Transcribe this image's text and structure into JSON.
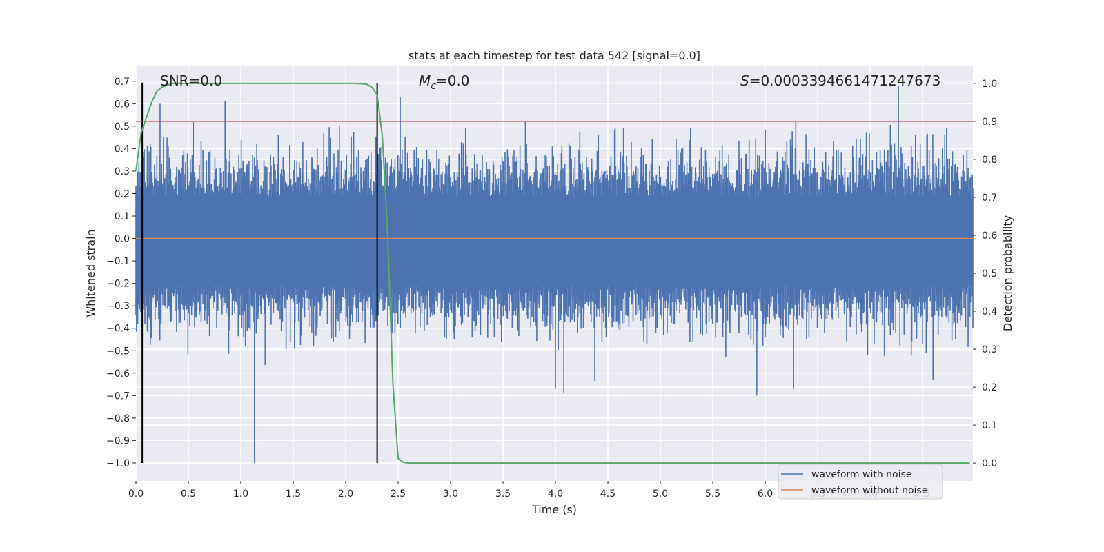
{
  "chart_data": {
    "type": "line",
    "title": "stats at each timestep for test data 542 [signal=0.0]",
    "xlabel": "Time (s)",
    "ylabel": "Whitened strain",
    "ylabel_right": "Detection probability",
    "xlim": [
      0.0,
      7.98
    ],
    "ylim": [
      -1.08,
      0.77
    ],
    "ylim_right": [
      -0.047,
      1.047
    ],
    "x_ticks": [
      0.0,
      0.5,
      1.0,
      1.5,
      2.0,
      2.5,
      3.0,
      3.5,
      4.0,
      4.5,
      5.0,
      5.5,
      6.0,
      6.5,
      7.0,
      7.5
    ],
    "x_tick_labels": [
      "0.0",
      "0.5",
      "1.0",
      "1.5",
      "2.0",
      "2.5",
      "3.0",
      "3.5",
      "4.0",
      "4.5",
      "5.0",
      "5.5",
      "6.0",
      "6.5",
      "7.0",
      "7.5"
    ],
    "y_ticks": [
      0.7,
      0.6,
      0.5,
      0.4,
      0.3,
      0.2,
      0.1,
      0.0,
      -0.1,
      -0.2,
      -0.3,
      -0.4,
      -0.5,
      -0.6,
      -0.7,
      -0.8,
      -0.9,
      -1.0
    ],
    "y_tick_labels": [
      "0.7",
      "0.6",
      "0.5",
      "0.4",
      "0.3",
      "0.2",
      "0.1",
      "0.0",
      "−0.1",
      "−0.2",
      "−0.3",
      "−0.4",
      "−0.5",
      "−0.6",
      "−0.7",
      "−0.8",
      "−0.9",
      "−1.0"
    ],
    "y_right_ticks": [
      1.0,
      0.9,
      0.8,
      0.7,
      0.6,
      0.5,
      0.4,
      0.3,
      0.2,
      0.1,
      0.0
    ],
    "y_right_tick_labels": [
      "1.0",
      "0.9",
      "0.8",
      "0.7",
      "0.6",
      "0.5",
      "0.4",
      "0.3",
      "0.2",
      "0.1",
      "0.0"
    ],
    "grid": true,
    "annotations": {
      "snr": "SNR=0.0",
      "mc_symbol": "M",
      "mc_sub": "c",
      "mc_value": "=0.0",
      "s_symbol": "S",
      "s_value": "=0.0003394661471247673"
    },
    "series": [
      {
        "name": "waveform with noise",
        "color": "#4c72b0",
        "kind": "noise",
        "x_range": [
          0.0,
          7.98
        ],
        "typical_range": [
          -0.34,
          0.3
        ],
        "extreme_spikes": [
          {
            "x": 0.06,
            "y": 0.57
          },
          {
            "x": 0.23,
            "y": 0.6
          },
          {
            "x": 0.85,
            "y": 0.61
          },
          {
            "x": 1.13,
            "y": -1.0
          },
          {
            "x": 2.52,
            "y": 0.63
          },
          {
            "x": 4.0,
            "y": -0.67
          },
          {
            "x": 4.08,
            "y": -0.69
          },
          {
            "x": 5.92,
            "y": -0.7
          },
          {
            "x": 6.27,
            "y": -0.67
          },
          {
            "x": 7.27,
            "y": 0.68
          },
          {
            "x": 7.6,
            "y": -0.63
          }
        ]
      },
      {
        "name": "waveform without noise",
        "color": "#dd8452",
        "x": [
          0.0,
          7.98
        ],
        "y": [
          0.0,
          0.0
        ]
      },
      {
        "name": "detection probability",
        "axis": "right",
        "color": "#55a868",
        "x": [
          0.0,
          0.05,
          0.1,
          0.15,
          0.2,
          0.25,
          0.3,
          0.35,
          0.4,
          0.5,
          1.0,
          1.5,
          2.0,
          2.1,
          2.2,
          2.25,
          2.3,
          2.35,
          2.4,
          2.45,
          2.5,
          2.55,
          2.6,
          3.0,
          5.0,
          7.0,
          7.95
        ],
        "y": [
          0.77,
          0.87,
          0.91,
          0.95,
          0.98,
          0.99,
          0.995,
          1.0,
          1.0,
          1.0,
          1.0,
          1.0,
          1.0,
          1.0,
          0.998,
          0.99,
          0.97,
          0.86,
          0.6,
          0.21,
          0.012,
          0.002,
          0.0,
          0.0,
          0.0,
          0.0,
          0.0
        ]
      }
    ],
    "threshold_line": {
      "y": 0.9,
      "axis": "right",
      "color": "#c44e52"
    },
    "vertical_markers": [
      {
        "x": 0.06,
        "y_from": -1.0,
        "y_to": 0.69,
        "color": "#000000"
      },
      {
        "x": 2.3,
        "y_from": -1.0,
        "y_to": 0.69,
        "color": "#000000"
      }
    ],
    "legend": {
      "position": "lower-right",
      "entries": [
        {
          "label": "waveform with noise",
          "color": "#4c72b0"
        },
        {
          "label": "waveform without noise",
          "color": "#dd8452"
        }
      ]
    },
    "colors": {
      "plot_background": "#eaeaf2",
      "grid": "#ffffff",
      "text": "#262626"
    }
  }
}
